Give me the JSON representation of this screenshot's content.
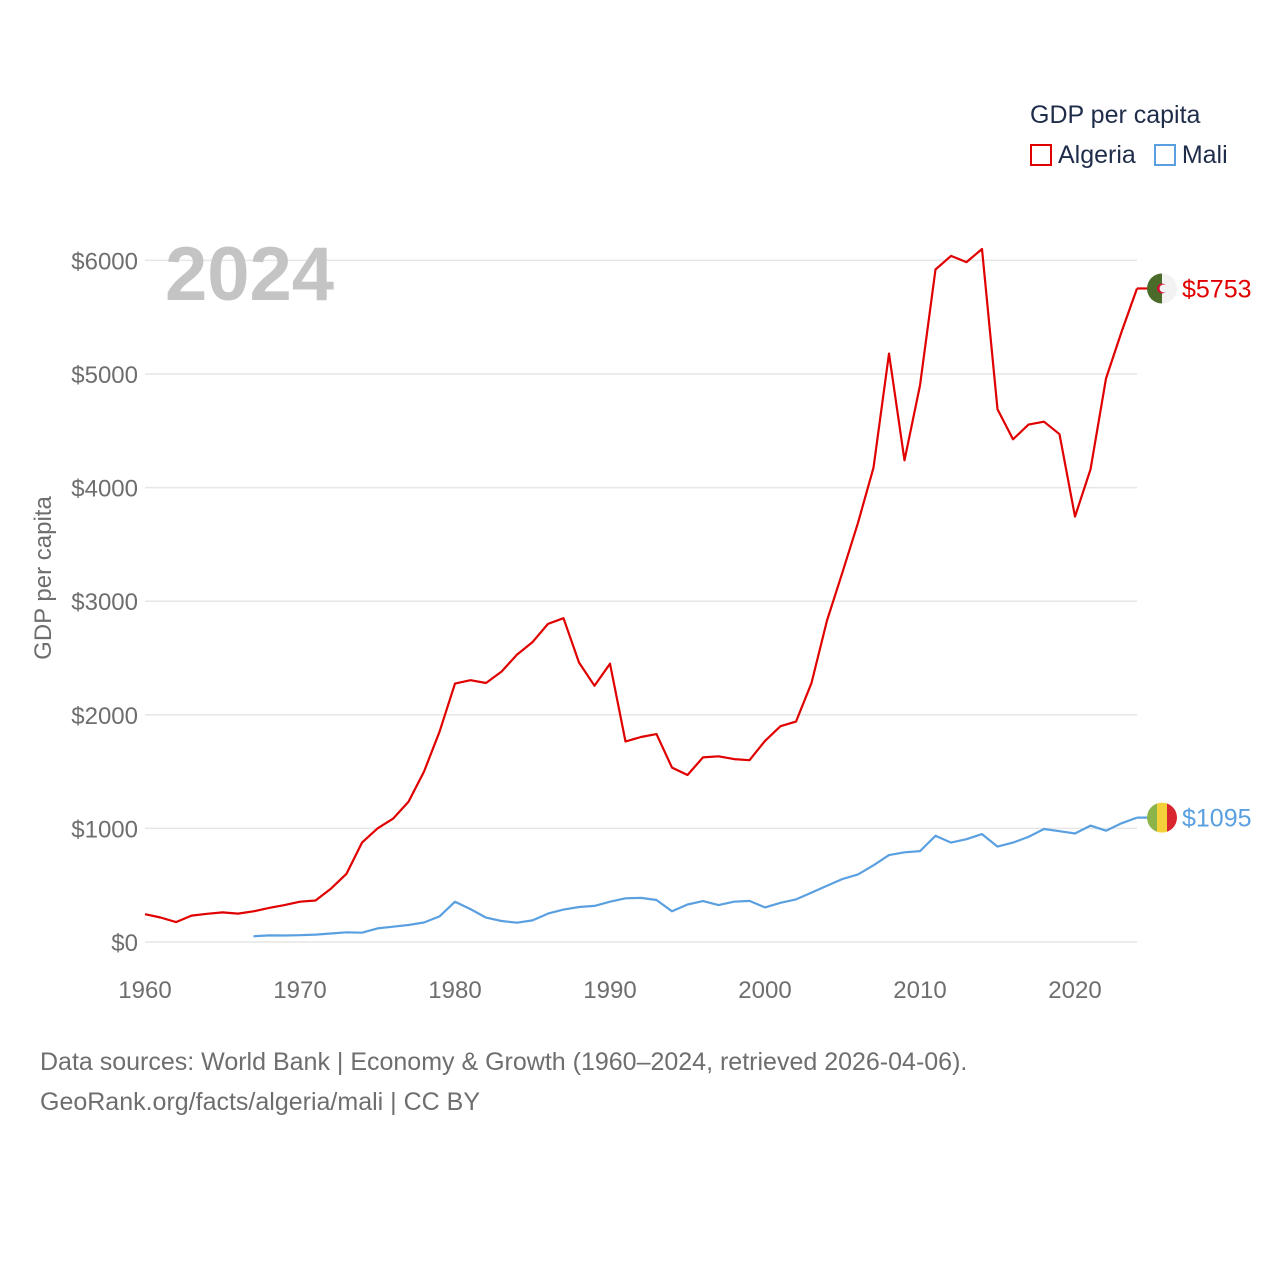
{
  "legend": {
    "title": "GDP per capita",
    "items": [
      {
        "name": "Algeria",
        "color": "#e00000"
      },
      {
        "name": "Mali",
        "color": "#5aa0e0"
      }
    ]
  },
  "footer": {
    "sources": "Data sources: World Bank | Economy & Growth (1960–2024, retrieved 2026-04-06).",
    "credit": "GeoRank.org/facts/algeria/mali | CC BY"
  },
  "chart_data": {
    "type": "line",
    "title": "GDP per capita",
    "year_label": "2024",
    "xlabel": "",
    "ylabel": "GDP per capita",
    "xlim": [
      1960,
      2024
    ],
    "ylim": [
      0,
      6200
    ],
    "x_ticks": [
      1960,
      1970,
      1980,
      1990,
      2000,
      2010,
      2020
    ],
    "y_ticks": [
      0,
      1000,
      2000,
      3000,
      4000,
      5000,
      6000
    ],
    "y_tick_labels": [
      "$0",
      "$1000",
      "$2000",
      "$3000",
      "$4000",
      "$5000",
      "$6000"
    ],
    "grid": true,
    "series": [
      {
        "name": "Algeria",
        "color": "#e00000",
        "end_label": "$5753",
        "flag": "algeria",
        "x": [
          1960,
          1961,
          1962,
          1963,
          1964,
          1965,
          1966,
          1967,
          1968,
          1969,
          1970,
          1971,
          1972,
          1973,
          1974,
          1975,
          1976,
          1977,
          1978,
          1979,
          1980,
          1981,
          1982,
          1983,
          1984,
          1985,
          1986,
          1987,
          1988,
          1989,
          1990,
          1991,
          1992,
          1993,
          1994,
          1995,
          1996,
          1997,
          1998,
          1999,
          2000,
          2001,
          2002,
          2003,
          2004,
          2005,
          2006,
          2007,
          2008,
          2009,
          2010,
          2011,
          2012,
          2013,
          2014,
          2015,
          2016,
          2017,
          2018,
          2019,
          2020,
          2021,
          2022,
          2023,
          2024
        ],
        "values": [
          245,
          216,
          175,
          232,
          248,
          261,
          250,
          270,
          300,
          325,
          355,
          365,
          470,
          600,
          875,
          1000,
          1085,
          1235,
          1500,
          1850,
          2275,
          2305,
          2280,
          2380,
          2530,
          2640,
          2800,
          2850,
          2460,
          2255,
          2450,
          1765,
          1805,
          1830,
          1535,
          1470,
          1625,
          1635,
          1610,
          1600,
          1770,
          1900,
          1940,
          2280,
          2830,
          3255,
          3690,
          4175,
          5180,
          4240,
          4900,
          5920,
          6040,
          5985,
          6100,
          4690,
          4425,
          4555,
          4580,
          4470,
          3745,
          4160,
          4960,
          5370,
          5753
        ]
      },
      {
        "name": "Mali",
        "color": "#5aa0e0",
        "end_label": "$1095",
        "flag": "mali",
        "x": [
          1967,
          1968,
          1969,
          1970,
          1971,
          1972,
          1973,
          1974,
          1975,
          1976,
          1977,
          1978,
          1979,
          1980,
          1981,
          1982,
          1983,
          1984,
          1985,
          1986,
          1987,
          1988,
          1989,
          1990,
          1991,
          1992,
          1993,
          1994,
          1995,
          1996,
          1997,
          1998,
          1999,
          2000,
          2001,
          2002,
          2003,
          2004,
          2005,
          2006,
          2007,
          2008,
          2009,
          2010,
          2011,
          2012,
          2013,
          2014,
          2015,
          2016,
          2017,
          2018,
          2019,
          2020,
          2021,
          2022,
          2023,
          2024
        ],
        "values": [
          50,
          58,
          57,
          60,
          65,
          75,
          85,
          82,
          120,
          135,
          150,
          172,
          225,
          355,
          290,
          215,
          185,
          170,
          190,
          250,
          285,
          308,
          318,
          355,
          385,
          388,
          370,
          270,
          330,
          360,
          325,
          355,
          362,
          305,
          345,
          375,
          435,
          495,
          555,
          595,
          675,
          765,
          790,
          800,
          935,
          875,
          905,
          950,
          840,
          875,
          925,
          995,
          975,
          955,
          1025,
          980,
          1045,
          1095
        ]
      }
    ]
  }
}
